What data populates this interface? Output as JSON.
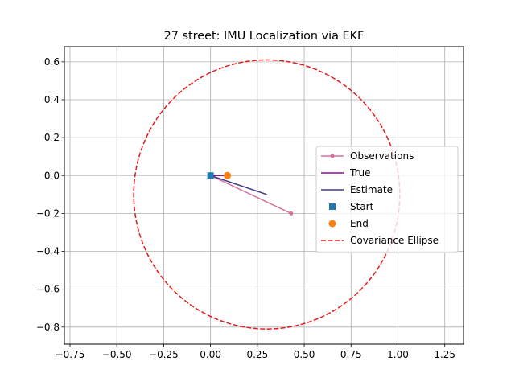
{
  "chart_data": {
    "type": "line",
    "title": "27 street: IMU Localization via EKF",
    "xlabel": "",
    "ylabel": "",
    "xlim": [
      -0.78,
      1.35
    ],
    "ylim": [
      -0.89,
      0.68
    ],
    "x_ticks": [
      -0.75,
      -0.5,
      -0.25,
      0.0,
      0.25,
      0.5,
      0.75,
      1.0,
      1.25
    ],
    "x_tick_labels": [
      "−0.75",
      "−0.50",
      "−0.25",
      "0.00",
      "0.25",
      "0.50",
      "0.75",
      "1.00",
      "1.25"
    ],
    "y_ticks": [
      -0.8,
      -0.6,
      -0.4,
      -0.2,
      0.0,
      0.2,
      0.4,
      0.6
    ],
    "y_tick_labels": [
      "−0.8",
      "−0.6",
      "−0.4",
      "−0.2",
      "0.0",
      "0.2",
      "0.4",
      "0.6"
    ],
    "grid": true,
    "legend_position": "center-right",
    "series": [
      {
        "name": "Observations",
        "kind": "line-marker",
        "color": "#d5719a",
        "x": [
          0.0,
          0.43
        ],
        "y": [
          0.0,
          -0.2
        ]
      },
      {
        "name": "True",
        "kind": "line",
        "color": "#7b1683",
        "x": [
          0.0,
          0.09
        ],
        "y": [
          0.0,
          0.0
        ]
      },
      {
        "name": "Estimate",
        "kind": "line",
        "color": "#3e3a85",
        "x": [
          0.0,
          0.3
        ],
        "y": [
          0.0,
          -0.1
        ]
      },
      {
        "name": "Start",
        "kind": "square-marker",
        "color": "#1f77b4",
        "x": [
          0.0
        ],
        "y": [
          0.0
        ]
      },
      {
        "name": "End",
        "kind": "circle-marker",
        "color": "#ff7f0e",
        "x": [
          0.09
        ],
        "y": [
          0.0
        ]
      }
    ],
    "ellipse": {
      "name": "Covariance Ellipse",
      "color": "#e41a1c",
      "center": [
        0.3,
        -0.1
      ],
      "radius_x": 0.71,
      "radius_y": 0.71
    }
  }
}
